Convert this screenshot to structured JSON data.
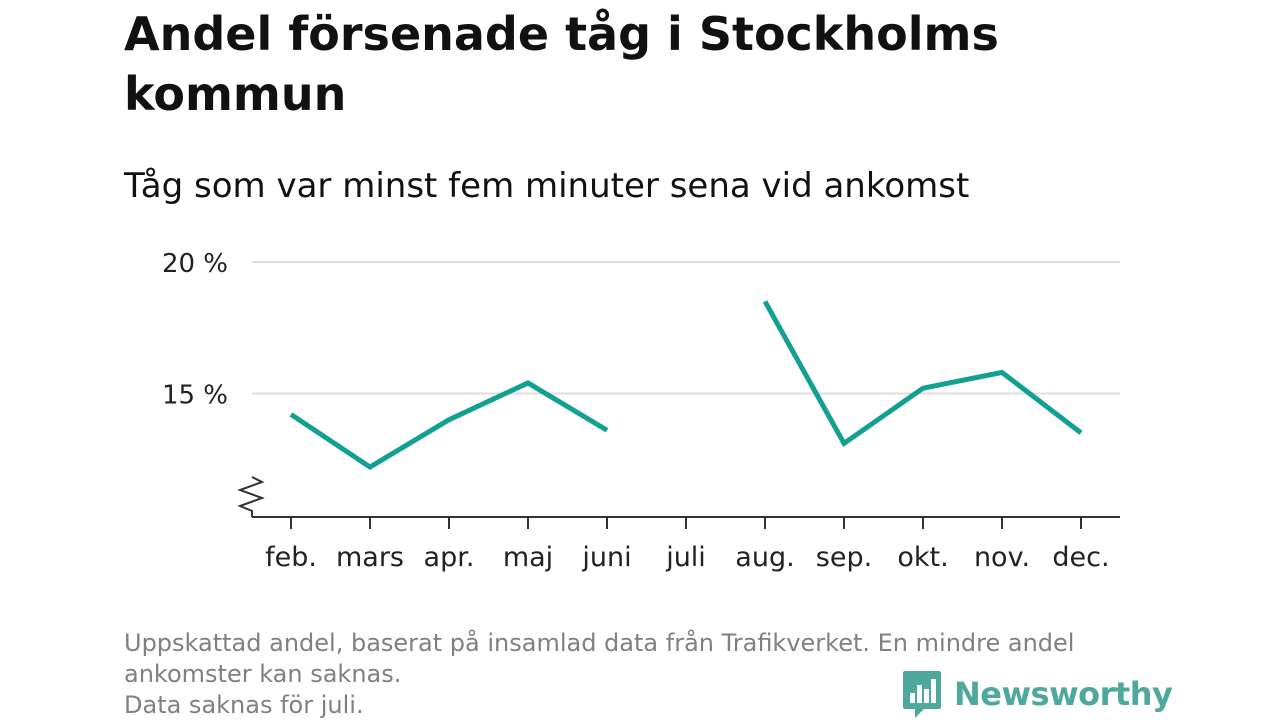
{
  "title": "Andel försenade tåg i Stockholms kommun",
  "subtitle": "Tåg som var minst fem minuter sena vid ankomst",
  "chart_data": {
    "type": "line",
    "categories": [
      "feb.",
      "mars",
      "apr.",
      "maj",
      "juni",
      "juli",
      "aug.",
      "sep.",
      "okt.",
      "nov.",
      "dec."
    ],
    "series": [
      {
        "values": [
          14.2,
          12.2,
          14.0,
          15.4,
          13.6,
          null,
          18.5,
          13.1,
          15.2,
          15.8,
          13.5
        ],
        "color": "#12a092"
      }
    ],
    "yticks": [
      15,
      20
    ],
    "ytick_labels": [
      "15 %",
      "20 %"
    ],
    "ylim": [
      10.3,
      20
    ],
    "y_axis_break": true,
    "grid": true,
    "legend": "none"
  },
  "footnote": {
    "lines": [
      "Uppskattad andel, baserat på insamlad data från Trafikverket. En mindre andel",
      "ankomster kan saknas.",
      "Data saknas för juli."
    ]
  },
  "brand": {
    "name": "Newsworthy",
    "logo_icon": "bar-chart-speech-bubble-icon",
    "color": "#4fa89c"
  },
  "colors": {
    "line": "#12a092",
    "grid": "#dddddd",
    "axis": "#333333",
    "footnote": "#808080"
  }
}
